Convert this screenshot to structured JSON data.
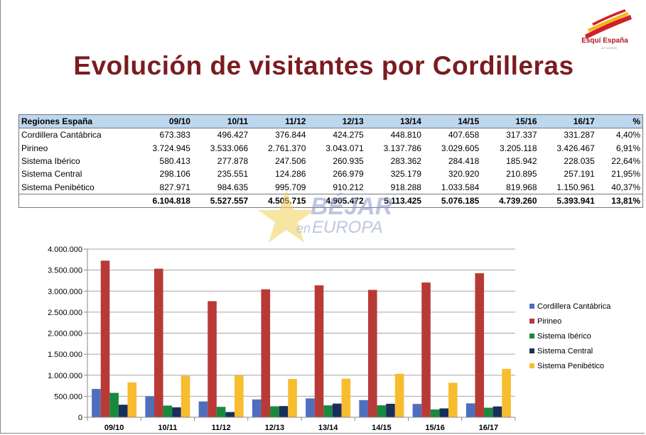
{
  "title": "Evolución de visitantes por Cordilleras",
  "logo": {
    "text": "Esquí España",
    "subtext": "ATUDEM"
  },
  "watermark": {
    "text1": "BÉJAR",
    "text2a": "en",
    "text2b": "EUROPA"
  },
  "table": {
    "headers": [
      "Regiones España",
      "09/10",
      "10/11",
      "11/12",
      "12/13",
      "13/14",
      "14/15",
      "15/16",
      "16/17",
      "%"
    ],
    "rows": [
      [
        "Cordillera Cantábrica",
        "673.383",
        "496.427",
        "376.844",
        "424.275",
        "448.810",
        "407.658",
        "317.337",
        "331.287",
        "4,40%"
      ],
      [
        "Pirineo",
        "3.724.945",
        "3.533.066",
        "2.761.370",
        "3.043.071",
        "3.137.786",
        "3.029.605",
        "3.205.118",
        "3.426.467",
        "6,91%"
      ],
      [
        "Sistema Ibérico",
        "580.413",
        "277.878",
        "247.506",
        "260.935",
        "283.362",
        "284.418",
        "185.942",
        "228.035",
        "22,64%"
      ],
      [
        "Sistema Central",
        "298.106",
        "235.551",
        "124.286",
        "266.979",
        "325.179",
        "320.920",
        "210.895",
        "257.191",
        "21,95%"
      ],
      [
        "Sistema Penibético",
        "827.971",
        "984.635",
        "995.709",
        "910.212",
        "918.288",
        "1.033.584",
        "819.968",
        "1.150.961",
        "40,37%"
      ]
    ],
    "total": [
      "",
      "6.104.818",
      "5.527.557",
      "4.505.715",
      "4.905.472",
      "5.113.425",
      "5.076.185",
      "4.739.260",
      "5.393.941",
      "13,81%"
    ]
  },
  "chart_data": {
    "type": "bar",
    "categories": [
      "09/10",
      "10/11",
      "11/12",
      "12/13",
      "13/14",
      "14/15",
      "15/16",
      "16/17"
    ],
    "series": [
      {
        "name": "Cordillera Cantábrica",
        "color": "#4f6fbd",
        "values": [
          673383,
          496427,
          376844,
          424275,
          448810,
          407658,
          317337,
          331287
        ]
      },
      {
        "name": "Pirineo",
        "color": "#b83a37",
        "values": [
          3724945,
          3533066,
          2761370,
          3043071,
          3137786,
          3029605,
          3205118,
          3426467
        ]
      },
      {
        "name": "Sistema Ibérico",
        "color": "#178a3e",
        "values": [
          580413,
          277878,
          247506,
          260935,
          283362,
          284418,
          185942,
          228035
        ]
      },
      {
        "name": "Sistema Central",
        "color": "#1a2e5c",
        "values": [
          298106,
          235551,
          124286,
          266979,
          325179,
          320920,
          210895,
          257191
        ]
      },
      {
        "name": "Sistema Penibético",
        "color": "#f7bd2f",
        "values": [
          827971,
          984635,
          995709,
          910212,
          918288,
          1033584,
          819968,
          1150961
        ]
      }
    ],
    "yticks": [
      "0",
      "500.000",
      "1.000.000",
      "1.500.000",
      "2.000.000",
      "2.500.000",
      "3.000.000",
      "3.500.000",
      "4.000.000"
    ],
    "ylim": [
      0,
      4000000
    ],
    "grid": true,
    "legend": "right"
  }
}
